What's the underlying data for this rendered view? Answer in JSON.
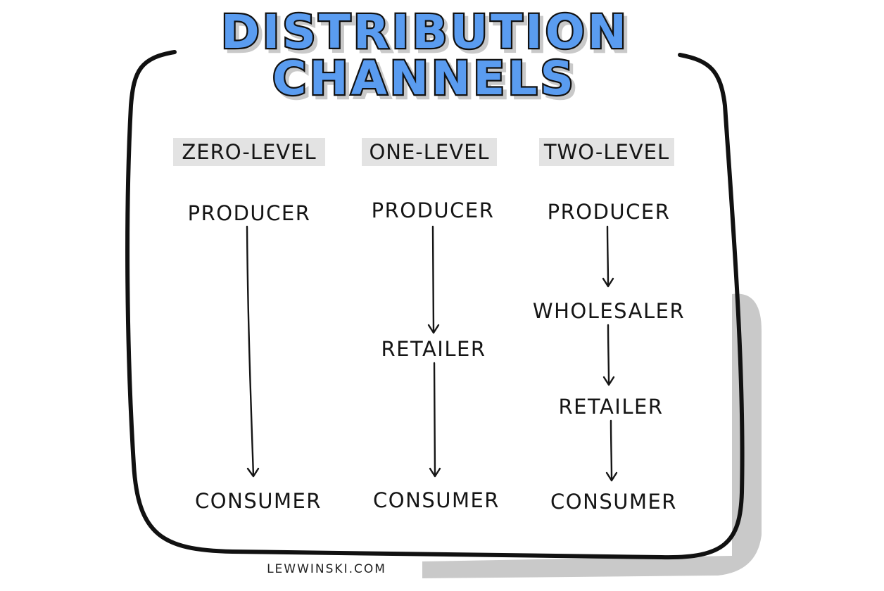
{
  "title": {
    "line1": "DISTRIBUTION",
    "line2": "CHANNELS"
  },
  "colors": {
    "title_fill": "#5a9cf0",
    "label_highlight": "#e3e3e3",
    "shadow": "#c9c9c9",
    "ink": "#111111"
  },
  "channels": [
    {
      "level": "ZERO-LEVEL",
      "nodes": [
        "PRODUCER",
        "CONSUMER"
      ]
    },
    {
      "level": "ONE-LEVEL",
      "nodes": [
        "PRODUCER",
        "RETAILER",
        "CONSUMER"
      ]
    },
    {
      "level": "TWO-LEVEL",
      "nodes": [
        "PRODUCER",
        "WHOLESALER",
        "RETAILER",
        "CONSUMER"
      ]
    }
  ],
  "credit": "LEWWINSKI.COM"
}
